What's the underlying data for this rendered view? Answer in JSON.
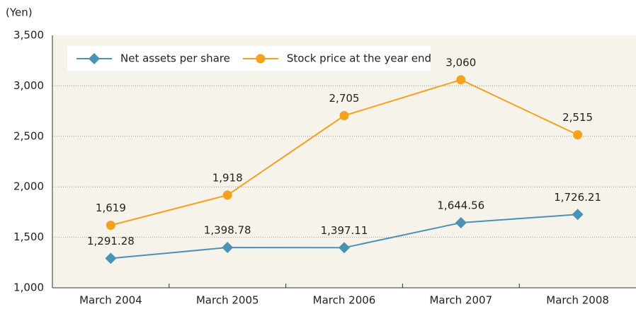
{
  "chart_data": {
    "type": "line",
    "y_label": "(Yen)",
    "categories": [
      "March 2004",
      "March 2005",
      "March 2006",
      "March 2007",
      "March 2008"
    ],
    "series": [
      {
        "name": "Net assets per share",
        "color": "#4a93b5",
        "marker": "diamond",
        "values": [
          1291.28,
          1398.78,
          1397.11,
          1644.56,
          1726.21
        ],
        "value_labels": [
          "1,291.28",
          "1,398.78",
          "1,397.11",
          "1,644.56",
          "1,726.21"
        ]
      },
      {
        "name": "Stock price at the year end",
        "color": "#f5a01e",
        "marker": "circle",
        "values": [
          1619,
          1918,
          2705,
          3060,
          2515
        ],
        "value_labels": [
          "1,619",
          "1,918",
          "2,705",
          "3,060",
          "2,515"
        ]
      }
    ],
    "ylim": [
      1000,
      3500
    ],
    "yticks": [
      {
        "value": 1000,
        "label": "1,000"
      },
      {
        "value": 1500,
        "label": "1,500"
      },
      {
        "value": 2000,
        "label": "2,000"
      },
      {
        "value": 2500,
        "label": "2,500"
      },
      {
        "value": 3000,
        "label": "3,000"
      },
      {
        "value": 3500,
        "label": "3,500"
      }
    ],
    "grid": true,
    "legend": "top-left"
  }
}
